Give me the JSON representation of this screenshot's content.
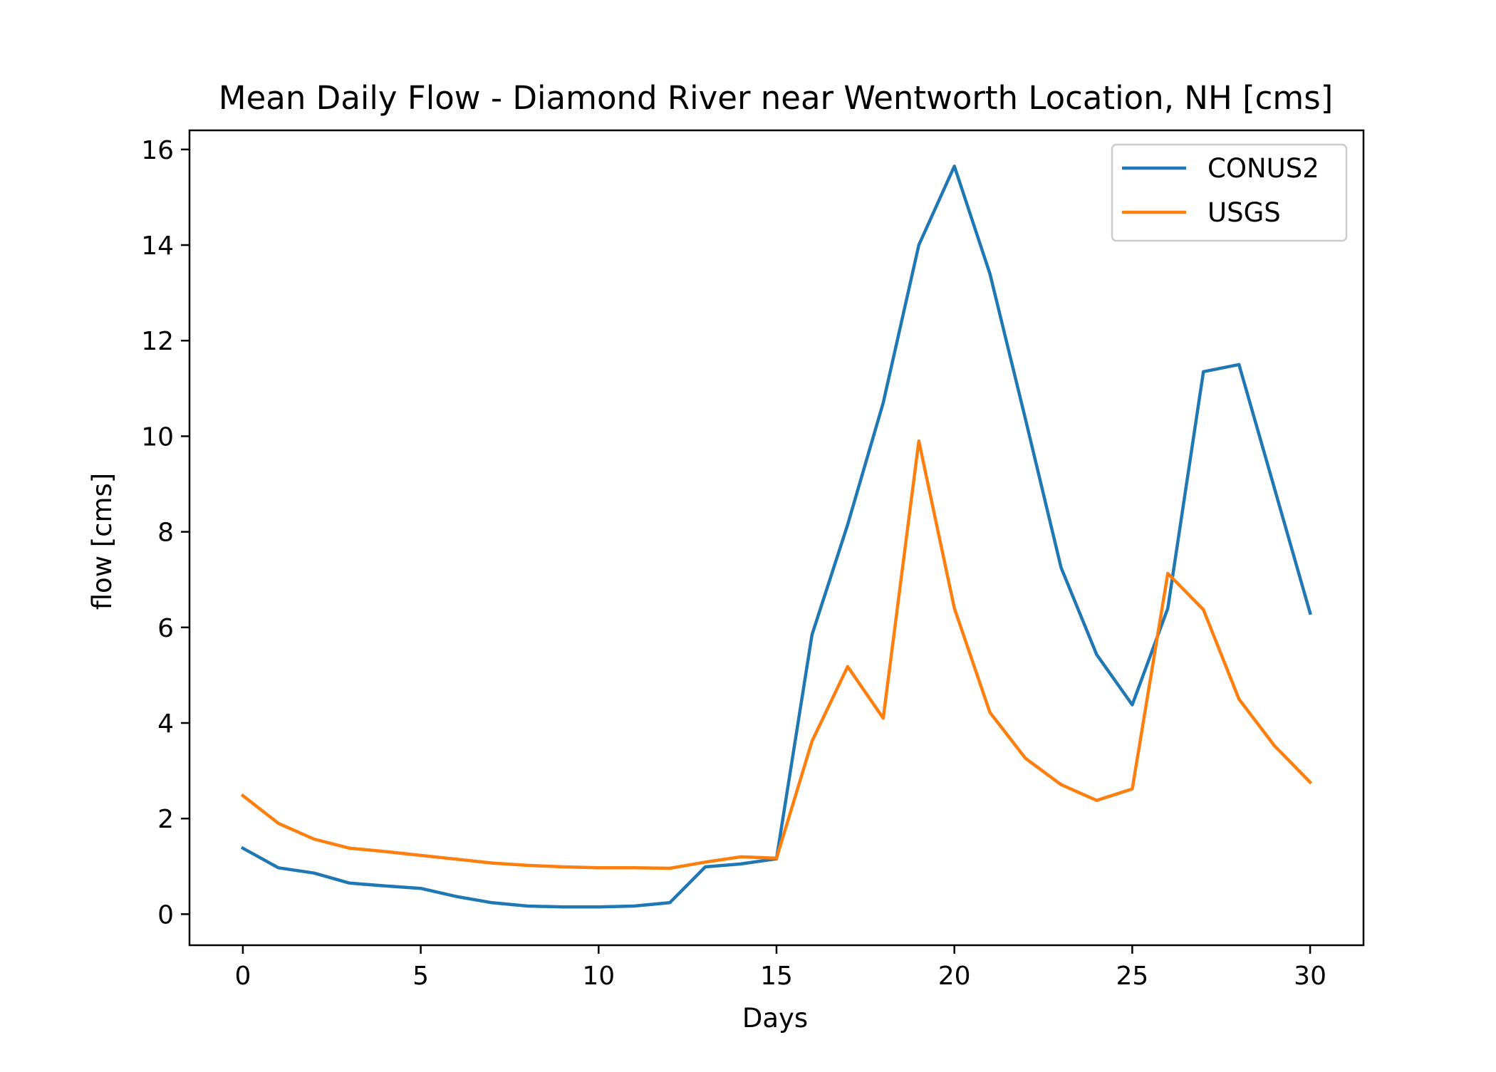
{
  "chart_data": {
    "type": "line",
    "title": "Mean Daily Flow - Diamond River near Wentworth Location, NH [cms]",
    "xlabel": "Days",
    "ylabel": "flow [cms]",
    "xlim": [
      -1.5,
      31.5
    ],
    "ylim": [
      -0.65,
      16.4
    ],
    "xticks": [
      0,
      5,
      10,
      15,
      20,
      25,
      30
    ],
    "yticks": [
      0,
      2,
      4,
      6,
      8,
      10,
      12,
      14,
      16
    ],
    "grid": false,
    "legend_position": "top-right",
    "x": [
      0,
      1,
      2,
      3,
      4,
      5,
      6,
      7,
      8,
      9,
      10,
      11,
      12,
      13,
      14,
      15,
      16,
      17,
      18,
      19,
      20,
      21,
      22,
      23,
      24,
      25,
      26,
      27,
      28,
      29,
      30
    ],
    "series": [
      {
        "name": "CONUS2",
        "color": "#1f77b4",
        "values": [
          1.38,
          0.97,
          0.86,
          0.65,
          0.59,
          0.54,
          0.37,
          0.24,
          0.17,
          0.15,
          0.15,
          0.17,
          0.24,
          0.99,
          1.05,
          1.16,
          5.85,
          8.15,
          10.7,
          14.0,
          15.65,
          13.4,
          10.35,
          7.25,
          5.43,
          4.38,
          6.4,
          11.35,
          11.5,
          8.9,
          6.3
        ]
      },
      {
        "name": "USGS",
        "color": "#ff7f0e",
        "values": [
          2.48,
          1.9,
          1.57,
          1.38,
          1.31,
          1.23,
          1.15,
          1.07,
          1.02,
          0.99,
          0.97,
          0.97,
          0.96,
          1.09,
          1.2,
          1.17,
          3.62,
          5.18,
          4.1,
          9.9,
          6.4,
          4.22,
          3.26,
          2.71,
          2.38,
          2.62,
          7.13,
          6.37,
          4.5,
          3.52,
          2.76
        ]
      }
    ]
  }
}
